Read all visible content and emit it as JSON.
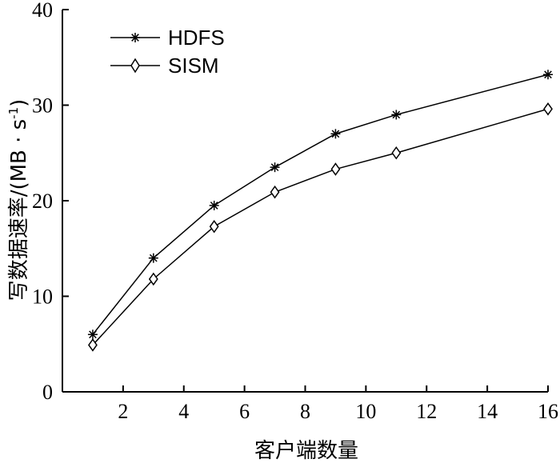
{
  "chart_data": {
    "type": "line",
    "x": [
      1,
      3,
      5,
      7,
      9,
      11,
      16
    ],
    "series": [
      {
        "name": "HDFS",
        "marker": "asterisk",
        "values": [
          6.0,
          14.0,
          19.5,
          23.5,
          27.0,
          29.0,
          33.2
        ]
      },
      {
        "name": "SISM",
        "marker": "diamond",
        "values": [
          4.9,
          11.8,
          17.3,
          20.9,
          23.3,
          25.0,
          29.6
        ]
      }
    ],
    "xlabel": "客户端数量",
    "ylabel": "写数据速率/(MB · s",
    "ylabel_sup": "-1",
    "ylabel_end": ")",
    "xlim": [
      0,
      16
    ],
    "ylim": [
      0,
      40
    ],
    "xticks": [
      2,
      4,
      6,
      8,
      10,
      12,
      14,
      16
    ],
    "yticks": [
      0,
      10,
      20,
      30,
      40
    ],
    "grid": false,
    "legend_position": "top-left",
    "line_color": "#000000"
  }
}
